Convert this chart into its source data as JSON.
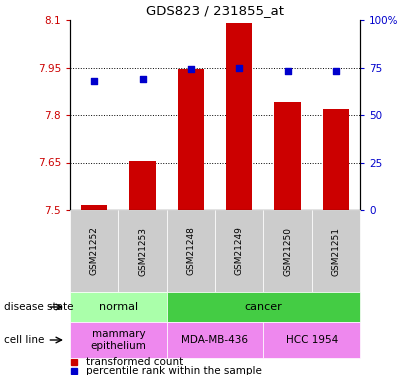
{
  "title": "GDS823 / 231855_at",
  "samples": [
    "GSM21252",
    "GSM21253",
    "GSM21248",
    "GSM21249",
    "GSM21250",
    "GSM21251"
  ],
  "transformed_count": [
    7.515,
    7.655,
    7.945,
    8.09,
    7.84,
    7.82
  ],
  "percentile_rank": [
    68,
    69,
    74,
    75,
    73,
    73
  ],
  "ylim_left": [
    7.5,
    8.1
  ],
  "ylim_right": [
    0,
    100
  ],
  "yticks_left": [
    7.5,
    7.65,
    7.8,
    7.95,
    8.1
  ],
  "yticks_right": [
    0,
    25,
    50,
    75,
    100
  ],
  "ytick_labels_left": [
    "7.5",
    "7.65",
    "7.8",
    "7.95",
    "8.1"
  ],
  "ytick_labels_right": [
    "0",
    "25",
    "50",
    "75",
    "100%"
  ],
  "bar_color": "#cc0000",
  "dot_color": "#0000cc",
  "bar_bottom": 7.5,
  "disease_state": [
    {
      "label": "normal",
      "span": [
        0,
        2
      ],
      "color": "#aaffaa"
    },
    {
      "label": "cancer",
      "span": [
        2,
        6
      ],
      "color": "#44cc44"
    }
  ],
  "cell_line": [
    {
      "label": "mammary\nepithelium",
      "span": [
        0,
        2
      ],
      "color": "#ee88ee"
    },
    {
      "label": "MDA-MB-436",
      "span": [
        2,
        4
      ],
      "color": "#ee88ee"
    },
    {
      "label": "HCC 1954",
      "span": [
        4,
        6
      ],
      "color": "#ee88ee"
    }
  ],
  "sample_bg_color": "#cccccc",
  "left_axis_color": "#cc0000",
  "right_axis_color": "#0000cc",
  "figsize": [
    4.11,
    3.75
  ],
  "dpi": 100
}
